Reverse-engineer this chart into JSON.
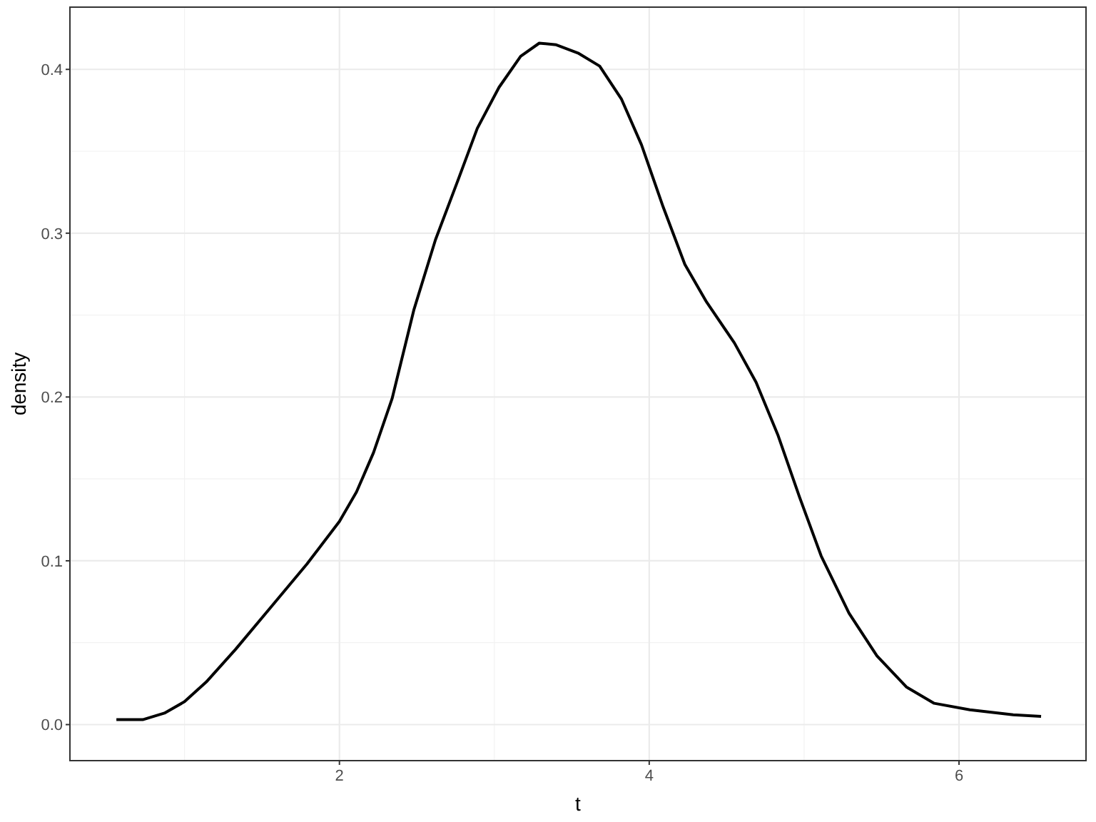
{
  "chart_data": {
    "type": "line",
    "xlabel": "t",
    "ylabel": "density",
    "x": [
      0.56,
      0.73,
      0.87,
      1.0,
      1.14,
      1.33,
      1.56,
      1.79,
      2.0,
      2.11,
      2.22,
      2.34,
      2.48,
      2.62,
      2.76,
      2.89,
      3.03,
      3.17,
      3.29,
      3.4,
      3.54,
      3.68,
      3.82,
      3.95,
      4.09,
      4.23,
      4.37,
      4.55,
      4.69,
      4.83,
      4.97,
      5.11,
      5.29,
      5.47,
      5.66,
      5.84,
      6.07,
      6.35,
      6.53
    ],
    "series": [
      {
        "color": "#000000",
        "values": [
          0.003,
          0.003,
          0.007,
          0.014,
          0.026,
          0.046,
          0.072,
          0.098,
          0.124,
          0.142,
          0.166,
          0.199,
          0.253,
          0.296,
          0.331,
          0.364,
          0.389,
          0.408,
          0.416,
          0.415,
          0.41,
          0.402,
          0.382,
          0.354,
          0.316,
          0.281,
          0.258,
          0.233,
          0.209,
          0.177,
          0.139,
          0.103,
          0.068,
          0.042,
          0.023,
          0.013,
          0.009,
          0.006,
          0.005
        ]
      }
    ],
    "xlim": [
      0.26,
      6.82
    ],
    "ylim": [
      -0.022,
      0.438
    ],
    "xticks": [
      2,
      4,
      6
    ],
    "yticks": [
      {
        "value": 0,
        "label": "0.0"
      },
      {
        "value": 0.1,
        "label": "0.1"
      },
      {
        "value": 0.2,
        "label": "0.2"
      },
      {
        "value": 0.3,
        "label": "0.3"
      },
      {
        "value": 0.4,
        "label": "0.4"
      }
    ],
    "grid": true,
    "marker": "none",
    "line_style": "solid"
  }
}
